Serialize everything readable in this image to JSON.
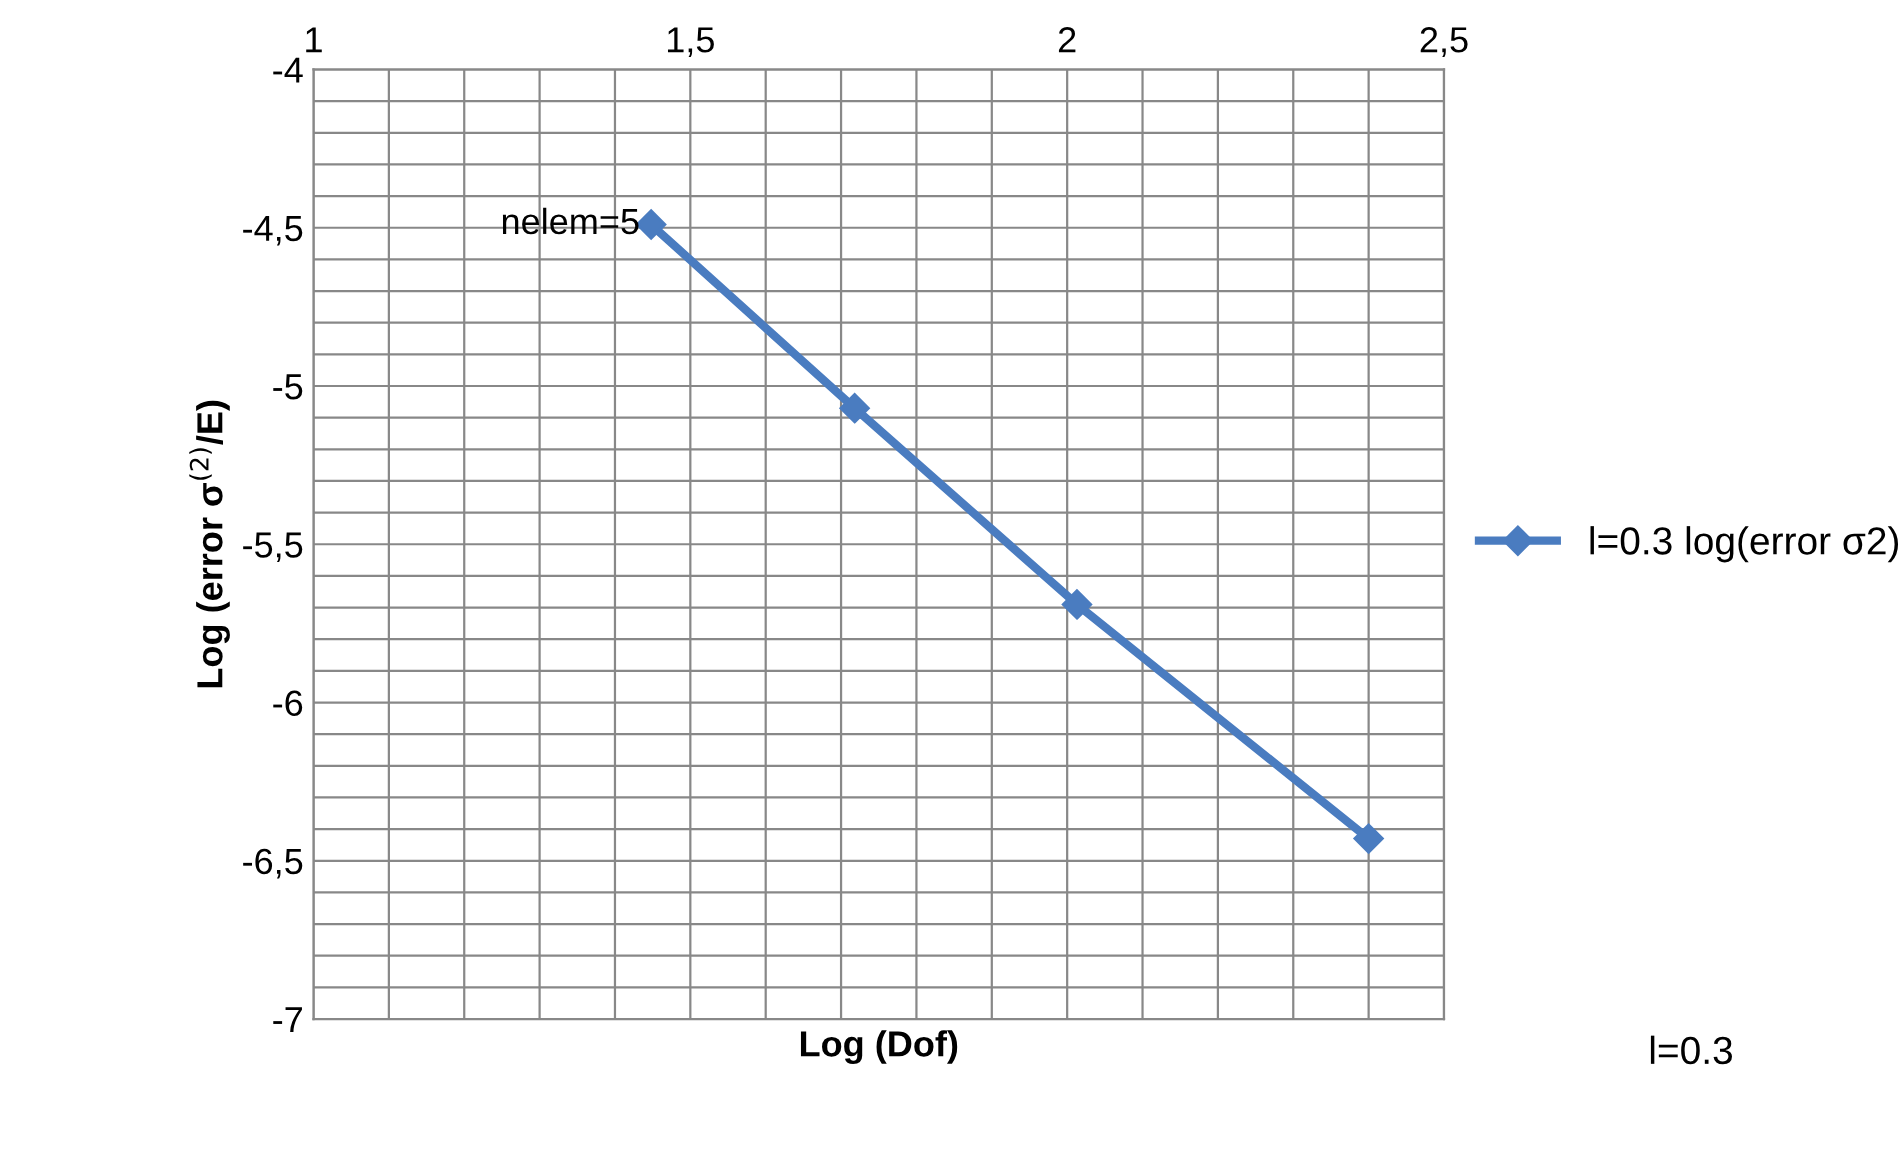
{
  "chart_data": {
    "type": "line",
    "xlabel": "Log (Dof)",
    "ylabel": "Log (error σ$^{(2)}$/E)",
    "x": [
      1.448,
      1.718,
      2.013,
      2.4
    ],
    "series": [
      {
        "name": "l=0.3 log(error σ2)",
        "color": "#4a7cc0",
        "values": [
          -4.49,
          -5.07,
          -5.69,
          -6.43
        ]
      }
    ],
    "xlim": [
      1,
      2.5
    ],
    "xticks": [
      1,
      {
        "value": 1.1,
        "label": null
      },
      {
        "value": 1.2,
        "label": null
      },
      {
        "value": 1.3,
        "label": null
      },
      {
        "value": 1.4,
        "label": null
      },
      {
        "value": 1.5,
        "label": "1,5"
      },
      {
        "value": 1.6,
        "label": null
      },
      {
        "value": 1.7,
        "label": null
      },
      {
        "value": 1.8,
        "label": null
      },
      {
        "value": 1.9,
        "label": null
      },
      2,
      {
        "value": 2.1,
        "label": null
      },
      {
        "value": 2.2,
        "label": null
      },
      {
        "value": 2.3,
        "label": null
      },
      {
        "value": 2.4,
        "label": null
      },
      {
        "value": 2.5,
        "label": "2,5"
      }
    ],
    "ylim": [
      -7,
      -4
    ],
    "yticks": [
      -7,
      {
        "value": -6.9,
        "label": null
      },
      {
        "value": -6.8,
        "label": null
      },
      {
        "value": -6.7,
        "label": null
      },
      {
        "value": -6.6,
        "label": null
      },
      {
        "value": -6.5,
        "label": "-6,5"
      },
      {
        "value": -6.4,
        "label": null
      },
      {
        "value": -6.3,
        "label": null
      },
      {
        "value": -6.2,
        "label": null
      },
      {
        "value": -6.1,
        "label": null
      },
      -6,
      {
        "value": -5.9,
        "label": null
      },
      {
        "value": -5.8,
        "label": null
      },
      {
        "value": -5.7,
        "label": null
      },
      {
        "value": -5.6,
        "label": null
      },
      {
        "value": -5.5,
        "label": "-5,5"
      },
      {
        "value": -5.4,
        "label": null
      },
      {
        "value": -5.3,
        "label": null
      },
      {
        "value": -5.2,
        "label": null
      },
      {
        "value": -5.1,
        "label": null
      },
      -5,
      {
        "value": -4.9,
        "label": null
      },
      {
        "value": -4.8,
        "label": null
      },
      {
        "value": -4.7,
        "label": null
      },
      {
        "value": -4.6,
        "label": null
      },
      {
        "value": -4.5,
        "label": "-4,5"
      },
      {
        "value": -4.4,
        "label": null
      },
      {
        "value": -4.3,
        "label": null
      },
      {
        "value": -4.2,
        "label": null
      },
      {
        "value": -4.1,
        "label": null
      },
      -4
    ],
    "annotations": [
      {
        "text": "nelem=5",
        "x": 1.448,
        "y": -4.49
      },
      "l=0.3"
    ],
    "grid": true,
    "legend": "right",
    "marker": "diamond",
    "line_style": "solid"
  }
}
